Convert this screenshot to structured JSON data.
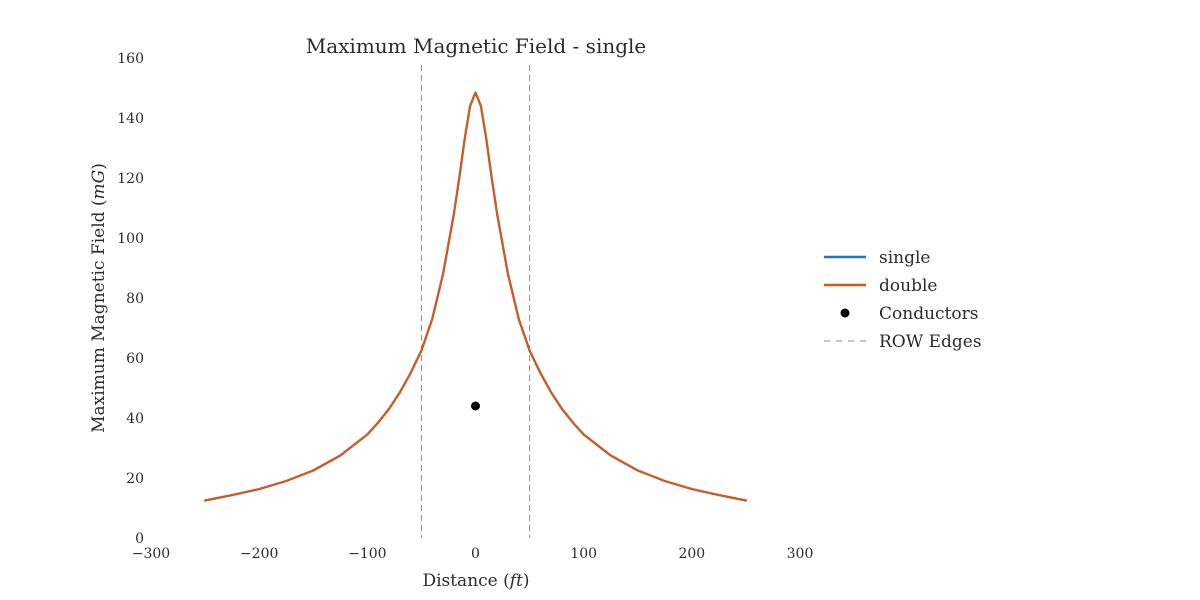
{
  "chart_data": {
    "type": "line",
    "title": "Maximum Magnetic Field - single",
    "xlabel": "Distance",
    "xunit": "ft",
    "ylabel": "Maximum Magnetic Field",
    "yunit": "mG",
    "xlim": [
      -300,
      300
    ],
    "ylim": [
      0,
      160
    ],
    "xticks": [
      -300,
      -200,
      -100,
      0,
      100,
      200,
      300
    ],
    "yticks": [
      0,
      20,
      40,
      60,
      80,
      100,
      120,
      140,
      160
    ],
    "grid": false,
    "legend_position": "right",
    "series": [
      {
        "name": "single",
        "color": "#1f77b4",
        "x": [
          -250,
          -225,
          -200,
          -175,
          -150,
          -125,
          -100,
          -90,
          -80,
          -70,
          -60,
          -50,
          -40,
          -30,
          -20,
          -15,
          -10,
          -5,
          0,
          5,
          10,
          15,
          20,
          30,
          40,
          50,
          60,
          70,
          80,
          90,
          100,
          125,
          150,
          175,
          200,
          225,
          250
        ],
        "y": [
          12.5,
          14.3,
          16.3,
          19,
          22.5,
          27.5,
          34.5,
          38.5,
          43,
          48.5,
          55,
          62.5,
          73,
          88,
          108,
          120,
          133,
          144,
          148.5,
          144,
          133,
          120,
          108,
          88,
          73,
          62.5,
          55,
          48.5,
          43,
          38.5,
          34.5,
          27.5,
          22.5,
          19,
          16.3,
          14.3,
          12.5
        ]
      },
      {
        "name": "double",
        "color": "#d2591f",
        "x": [
          -250,
          -225,
          -200,
          -175,
          -150,
          -125,
          -100,
          -90,
          -80,
          -70,
          -60,
          -50,
          -40,
          -30,
          -20,
          -15,
          -10,
          -5,
          0,
          5,
          10,
          15,
          20,
          30,
          40,
          50,
          60,
          70,
          80,
          90,
          100,
          125,
          150,
          175,
          200,
          225,
          250
        ],
        "y": [
          12.5,
          14.3,
          16.3,
          19,
          22.5,
          27.5,
          34.5,
          38.5,
          43,
          48.5,
          55,
          62.5,
          73,
          88,
          108,
          120,
          133,
          144,
          148.5,
          144,
          133,
          120,
          108,
          88,
          73,
          62.5,
          55,
          48.5,
          43,
          38.5,
          34.5,
          27.5,
          22.5,
          19,
          16.3,
          14.3,
          12.5
        ]
      }
    ],
    "conductors": {
      "name": "Conductors",
      "color": "#000000",
      "points": [
        {
          "x": 0,
          "y": 44
        }
      ]
    },
    "row_edges": {
      "name": "ROW Edges",
      "color": "#888888",
      "x": [
        -50,
        50
      ]
    }
  }
}
